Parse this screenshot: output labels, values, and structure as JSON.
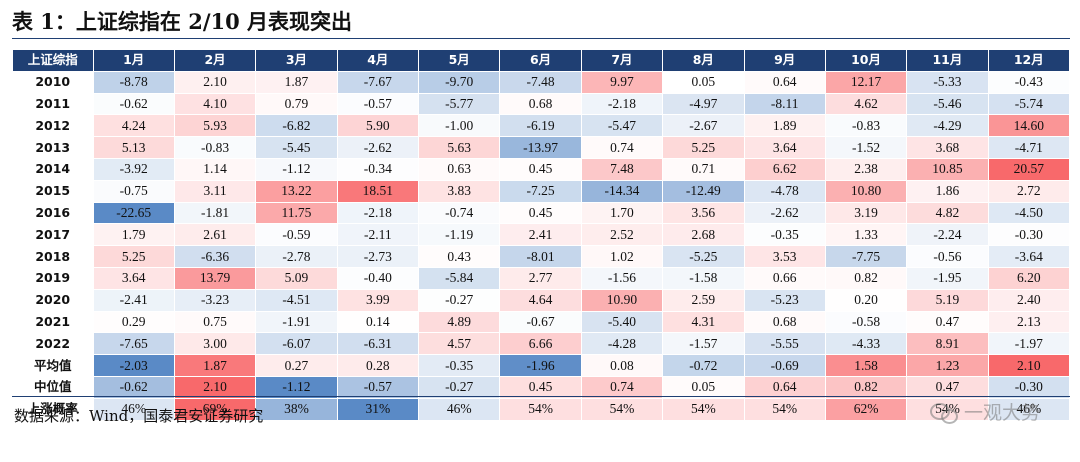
{
  "title": "表 1：上证综指在 2/10 月表现突出",
  "table": {
    "corner": "上证综指",
    "months": [
      "1月",
      "2月",
      "3月",
      "4月",
      "5月",
      "6月",
      "7月",
      "8月",
      "9月",
      "10月",
      "11月",
      "12月"
    ],
    "rows": [
      {
        "label": "2010",
        "values": [
          "-8.78",
          "2.10",
          "1.87",
          "-7.67",
          "-9.70",
          "-7.48",
          "9.97",
          "0.05",
          "0.64",
          "12.17",
          "-5.33",
          "-0.43"
        ]
      },
      {
        "label": "2011",
        "values": [
          "-0.62",
          "4.10",
          "0.79",
          "-0.57",
          "-5.77",
          "0.68",
          "-2.18",
          "-4.97",
          "-8.11",
          "4.62",
          "-5.46",
          "-5.74"
        ]
      },
      {
        "label": "2012",
        "values": [
          "4.24",
          "5.93",
          "-6.82",
          "5.90",
          "-1.00",
          "-6.19",
          "-5.47",
          "-2.67",
          "1.89",
          "-0.83",
          "-4.29",
          "14.60"
        ]
      },
      {
        "label": "2013",
        "values": [
          "5.13",
          "-0.83",
          "-5.45",
          "-2.62",
          "5.63",
          "-13.97",
          "0.74",
          "5.25",
          "3.64",
          "-1.52",
          "3.68",
          "-4.71"
        ]
      },
      {
        "label": "2014",
        "values": [
          "-3.92",
          "1.14",
          "-1.12",
          "-0.34",
          "0.63",
          "0.45",
          "7.48",
          "0.71",
          "6.62",
          "2.38",
          "10.85",
          "20.57"
        ]
      },
      {
        "label": "2015",
        "values": [
          "-0.75",
          "3.11",
          "13.22",
          "18.51",
          "3.83",
          "-7.25",
          "-14.34",
          "-12.49",
          "-4.78",
          "10.80",
          "1.86",
          "2.72"
        ]
      },
      {
        "label": "2016",
        "values": [
          "-22.65",
          "-1.81",
          "11.75",
          "-2.18",
          "-0.74",
          "0.45",
          "1.70",
          "3.56",
          "-2.62",
          "3.19",
          "4.82",
          "-4.50"
        ]
      },
      {
        "label": "2017",
        "values": [
          "1.79",
          "2.61",
          "-0.59",
          "-2.11",
          "-1.19",
          "2.41",
          "2.52",
          "2.68",
          "-0.35",
          "1.33",
          "-2.24",
          "-0.30"
        ]
      },
      {
        "label": "2018",
        "values": [
          "5.25",
          "-6.36",
          "-2.78",
          "-2.73",
          "0.43",
          "-8.01",
          "1.02",
          "-5.25",
          "3.53",
          "-7.75",
          "-0.56",
          "-3.64"
        ]
      },
      {
        "label": "2019",
        "values": [
          "3.64",
          "13.79",
          "5.09",
          "-0.40",
          "-5.84",
          "2.77",
          "-1.56",
          "-1.58",
          "0.66",
          "0.82",
          "-1.95",
          "6.20"
        ]
      },
      {
        "label": "2020",
        "values": [
          "-2.41",
          "-3.23",
          "-4.51",
          "3.99",
          "-0.27",
          "4.64",
          "10.90",
          "2.59",
          "-5.23",
          "0.20",
          "5.19",
          "2.40"
        ]
      },
      {
        "label": "2021",
        "values": [
          "0.29",
          "0.75",
          "-1.91",
          "0.14",
          "4.89",
          "-0.67",
          "-5.40",
          "4.31",
          "0.68",
          "-0.58",
          "0.47",
          "2.13"
        ]
      },
      {
        "label": "2022",
        "values": [
          "-7.65",
          "3.00",
          "-6.07",
          "-6.31",
          "4.57",
          "6.66",
          "-4.28",
          "-1.57",
          "-5.55",
          "-4.33",
          "8.91",
          "-1.97"
        ]
      },
      {
        "label": "平均值",
        "values": [
          "-2.03",
          "1.87",
          "0.27",
          "0.28",
          "-0.35",
          "-1.96",
          "0.08",
          "-0.72",
          "-0.69",
          "1.58",
          "1.23",
          "2.10"
        ]
      },
      {
        "label": "中位值",
        "values": [
          "-0.62",
          "2.10",
          "-1.12",
          "-0.57",
          "-0.27",
          "0.45",
          "0.74",
          "0.05",
          "0.64",
          "0.82",
          "0.47",
          "-0.30"
        ]
      },
      {
        "label": "上涨概率",
        "values": [
          "46%",
          "69%",
          "38%",
          "31%",
          "46%",
          "54%",
          "54%",
          "54%",
          "54%",
          "62%",
          "54%",
          "46%"
        ]
      }
    ]
  },
  "colors": {
    "header_bg": "#1f3f73",
    "positive": "#f8696b",
    "negative": "#5a8ac6",
    "neutral": "#ffffff"
  },
  "source": "数据来源：Wind，国泰君安证券研究",
  "watermark": "一观大势",
  "watermark_icon": "wechat-icon"
}
